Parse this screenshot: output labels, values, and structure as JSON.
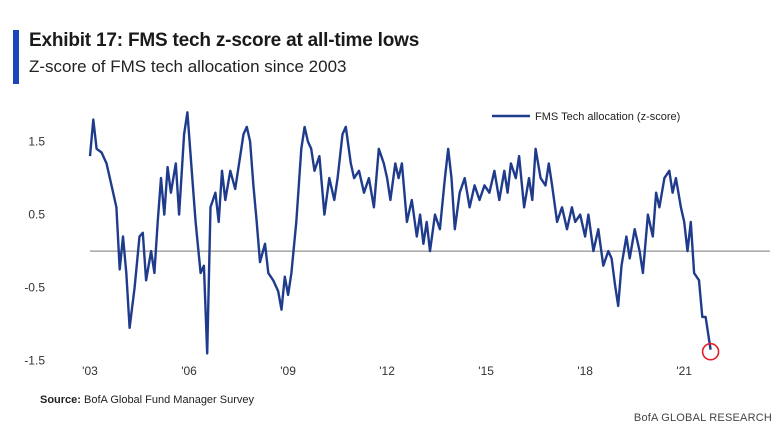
{
  "header": {
    "title": "Exhibit 17: FMS tech z-score at all-time lows",
    "subtitle": "Z-score of FMS tech allocation since 2003"
  },
  "footer": {
    "source_label": "Source:",
    "source_text": " BofA Global Fund Manager Survey",
    "brand": "BofA GLOBAL RESEARCH"
  },
  "colors": {
    "accent": "#1a46b8",
    "series": "#1f3b8c",
    "zero_line": "#7a7a7a",
    "highlight_circle": "#e0202a"
  },
  "chart_data": {
    "type": "line",
    "title": "Exhibit 17: FMS tech z-score at all-time lows",
    "subtitle": "Z-score of FMS tech allocation since 2003",
    "xlabel": "",
    "ylabel": "",
    "xlim": [
      2003.0,
      2023.6
    ],
    "ylim": [
      -1.6,
      2.0
    ],
    "x_ticks": [
      2003,
      2006,
      2009,
      2012,
      2015,
      2018,
      2021
    ],
    "x_tick_labels": [
      "'03",
      "'06",
      "'09",
      "'12",
      "'15",
      "'18",
      "'21"
    ],
    "y_ticks": [
      1.5,
      0.5,
      -0.5,
      -1.5
    ],
    "y_tick_labels": [
      "1.5",
      "0.5",
      "-0.5",
      "-1.5"
    ],
    "reference_line": 0,
    "grid": false,
    "legend": {
      "placement": "top-right",
      "entries": [
        "FMS Tech allocation (z-score)"
      ]
    },
    "series": [
      {
        "name": "FMS Tech allocation (z-score)",
        "points": [
          [
            2003.0,
            1.3
          ],
          [
            2003.1,
            1.8
          ],
          [
            2003.2,
            1.4
          ],
          [
            2003.35,
            1.35
          ],
          [
            2003.5,
            1.2
          ],
          [
            2003.65,
            0.9
          ],
          [
            2003.8,
            0.6
          ],
          [
            2003.9,
            -0.25
          ],
          [
            2004.0,
            0.2
          ],
          [
            2004.1,
            -0.3
          ],
          [
            2004.2,
            -1.05
          ],
          [
            2004.35,
            -0.5
          ],
          [
            2004.5,
            0.2
          ],
          [
            2004.6,
            0.25
          ],
          [
            2004.7,
            -0.4
          ],
          [
            2004.85,
            0.0
          ],
          [
            2004.95,
            -0.3
          ],
          [
            2005.05,
            0.4
          ],
          [
            2005.15,
            1.0
          ],
          [
            2005.25,
            0.5
          ],
          [
            2005.35,
            1.15
          ],
          [
            2005.45,
            0.8
          ],
          [
            2005.6,
            1.2
          ],
          [
            2005.7,
            0.5
          ],
          [
            2005.85,
            1.6
          ],
          [
            2005.95,
            1.9
          ],
          [
            2006.1,
            1.0
          ],
          [
            2006.2,
            0.4
          ],
          [
            2006.35,
            -0.3
          ],
          [
            2006.45,
            -0.2
          ],
          [
            2006.55,
            -1.4
          ],
          [
            2006.65,
            0.6
          ],
          [
            2006.8,
            0.8
          ],
          [
            2006.9,
            0.4
          ],
          [
            2007.0,
            1.1
          ],
          [
            2007.1,
            0.7
          ],
          [
            2007.25,
            1.1
          ],
          [
            2007.4,
            0.85
          ],
          [
            2007.55,
            1.3
          ],
          [
            2007.65,
            1.6
          ],
          [
            2007.75,
            1.7
          ],
          [
            2007.85,
            1.5
          ],
          [
            2007.95,
            0.9
          ],
          [
            2008.05,
            0.4
          ],
          [
            2008.15,
            -0.15
          ],
          [
            2008.3,
            0.1
          ],
          [
            2008.4,
            -0.3
          ],
          [
            2008.55,
            -0.4
          ],
          [
            2008.7,
            -0.55
          ],
          [
            2008.8,
            -0.8
          ],
          [
            2008.9,
            -0.35
          ],
          [
            2009.0,
            -0.6
          ],
          [
            2009.1,
            -0.3
          ],
          [
            2009.25,
            0.4
          ],
          [
            2009.4,
            1.4
          ],
          [
            2009.5,
            1.7
          ],
          [
            2009.6,
            1.5
          ],
          [
            2009.7,
            1.4
          ],
          [
            2009.8,
            1.1
          ],
          [
            2009.95,
            1.3
          ],
          [
            2010.1,
            0.5
          ],
          [
            2010.25,
            1.0
          ],
          [
            2010.4,
            0.7
          ],
          [
            2010.5,
            1.0
          ],
          [
            2010.65,
            1.6
          ],
          [
            2010.75,
            1.7
          ],
          [
            2010.9,
            1.2
          ],
          [
            2011.0,
            1.0
          ],
          [
            2011.15,
            1.1
          ],
          [
            2011.3,
            0.8
          ],
          [
            2011.45,
            1.0
          ],
          [
            2011.6,
            0.6
          ],
          [
            2011.75,
            1.4
          ],
          [
            2011.9,
            1.2
          ],
          [
            2012.0,
            1.0
          ],
          [
            2012.1,
            0.7
          ],
          [
            2012.25,
            1.2
          ],
          [
            2012.35,
            1.0
          ],
          [
            2012.45,
            1.2
          ],
          [
            2012.6,
            0.4
          ],
          [
            2012.75,
            0.7
          ],
          [
            2012.9,
            0.2
          ],
          [
            2013.0,
            0.5
          ],
          [
            2013.1,
            0.1
          ],
          [
            2013.2,
            0.4
          ],
          [
            2013.3,
            0.0
          ],
          [
            2013.45,
            0.5
          ],
          [
            2013.6,
            0.3
          ],
          [
            2013.75,
            1.0
          ],
          [
            2013.85,
            1.4
          ],
          [
            2013.95,
            1.0
          ],
          [
            2014.05,
            0.3
          ],
          [
            2014.2,
            0.8
          ],
          [
            2014.35,
            1.0
          ],
          [
            2014.5,
            0.6
          ],
          [
            2014.65,
            0.9
          ],
          [
            2014.8,
            0.7
          ],
          [
            2014.95,
            0.9
          ],
          [
            2015.1,
            0.8
          ],
          [
            2015.25,
            1.1
          ],
          [
            2015.4,
            0.7
          ],
          [
            2015.55,
            1.1
          ],
          [
            2015.65,
            0.8
          ],
          [
            2015.75,
            1.2
          ],
          [
            2015.9,
            1.0
          ],
          [
            2016.0,
            1.3
          ],
          [
            2016.15,
            0.6
          ],
          [
            2016.3,
            1.0
          ],
          [
            2016.4,
            0.7
          ],
          [
            2016.5,
            1.4
          ],
          [
            2016.65,
            1.0
          ],
          [
            2016.8,
            0.9
          ],
          [
            2016.9,
            1.2
          ],
          [
            2017.0,
            0.9
          ],
          [
            2017.15,
            0.4
          ],
          [
            2017.3,
            0.6
          ],
          [
            2017.45,
            0.3
          ],
          [
            2017.6,
            0.6
          ],
          [
            2017.7,
            0.4
          ],
          [
            2017.85,
            0.5
          ],
          [
            2018.0,
            0.2
          ],
          [
            2018.1,
            0.5
          ],
          [
            2018.25,
            0.0
          ],
          [
            2018.4,
            0.3
          ],
          [
            2018.55,
            -0.2
          ],
          [
            2018.7,
            0.0
          ],
          [
            2018.8,
            -0.1
          ],
          [
            2018.9,
            -0.45
          ],
          [
            2019.0,
            -0.75
          ],
          [
            2019.1,
            -0.2
          ],
          [
            2019.25,
            0.2
          ],
          [
            2019.35,
            -0.1
          ],
          [
            2019.5,
            0.3
          ],
          [
            2019.65,
            0.0
          ],
          [
            2019.75,
            -0.3
          ],
          [
            2019.9,
            0.5
          ],
          [
            2020.05,
            0.2
          ],
          [
            2020.15,
            0.8
          ],
          [
            2020.25,
            0.6
          ],
          [
            2020.4,
            1.0
          ],
          [
            2020.55,
            1.1
          ],
          [
            2020.65,
            0.8
          ],
          [
            2020.75,
            1.0
          ],
          [
            2020.9,
            0.6
          ],
          [
            2021.0,
            0.4
          ],
          [
            2021.1,
            0.0
          ],
          [
            2021.2,
            0.4
          ],
          [
            2021.3,
            -0.3
          ],
          [
            2021.45,
            -0.4
          ],
          [
            2021.55,
            -0.9
          ],
          [
            2021.65,
            -0.9
          ],
          [
            2021.8,
            -1.35
          ]
        ]
      }
    ],
    "annotations": [
      {
        "type": "circle",
        "x": 2021.8,
        "y": -1.35
      }
    ]
  }
}
